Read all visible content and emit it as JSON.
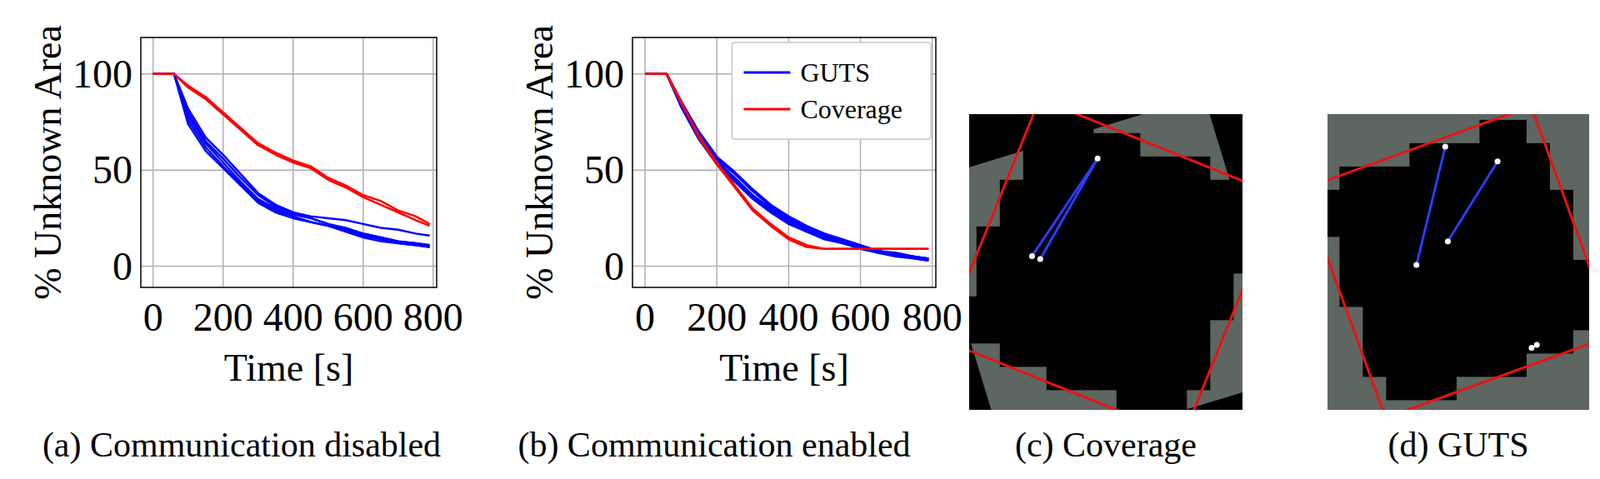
{
  "chart_data": [
    {
      "type": "line",
      "x_label": "Time [s]",
      "y_label": "% Unknown Area",
      "xlim": [
        -35,
        810
      ],
      "ylim": [
        -11,
        119
      ],
      "xticks": [
        0,
        200,
        400,
        600,
        800
      ],
      "yticks": [
        0,
        50,
        100
      ],
      "grid": true,
      "x": [
        0,
        60,
        100,
        150,
        200,
        250,
        300,
        350,
        400,
        450,
        500,
        550,
        600,
        650,
        700,
        750,
        790
      ],
      "series": [
        {
          "name": "GUTS",
          "color": "#0000ff",
          "values": [
            100,
            100,
            80,
            65,
            56,
            46,
            37,
            31,
            28,
            26,
            25,
            24,
            22,
            20,
            19,
            17,
            16
          ]
        },
        {
          "name": "GUTS",
          "color": "#0000ff",
          "values": [
            100,
            100,
            78,
            64,
            54,
            44,
            35,
            30,
            27,
            25,
            22,
            20,
            17,
            15,
            13,
            12,
            11
          ]
        },
        {
          "name": "GUTS",
          "color": "#0000ff",
          "values": [
            100,
            100,
            76,
            62,
            52,
            43,
            34,
            29,
            26,
            23,
            21,
            19,
            17,
            15,
            13,
            12,
            11
          ]
        },
        {
          "name": "GUTS",
          "color": "#0000ff",
          "values": [
            100,
            100,
            74,
            60,
            51,
            42,
            33,
            28,
            25,
            23,
            21,
            18,
            15,
            13,
            12,
            11,
            10
          ]
        },
        {
          "name": "GUTS",
          "color": "#0000ff",
          "values": [
            100,
            100,
            82,
            67,
            58,
            48,
            38,
            32,
            28,
            25,
            22,
            19,
            16,
            14,
            12,
            11,
            10
          ]
        },
        {
          "name": "Coverage",
          "color": "#ff0000",
          "values": [
            100,
            100,
            94,
            88,
            80,
            72,
            64,
            59,
            55,
            52,
            46,
            42,
            37,
            34,
            29,
            26,
            22
          ]
        },
        {
          "name": "Coverage",
          "color": "#ff0000",
          "values": [
            100,
            100,
            93,
            87,
            79,
            71,
            63,
            58,
            54,
            51,
            45,
            41,
            36,
            32,
            28,
            24,
            21
          ]
        }
      ]
    },
    {
      "type": "line",
      "x_label": "Time [s]",
      "y_label": "% Unknown Area",
      "xlim": [
        -35,
        810
      ],
      "ylim": [
        -11,
        119
      ],
      "xticks": [
        0,
        200,
        400,
        600,
        800
      ],
      "yticks": [
        0,
        50,
        100
      ],
      "grid": true,
      "legend": "upper right",
      "x": [
        0,
        60,
        100,
        150,
        200,
        250,
        300,
        350,
        400,
        450,
        500,
        550,
        600,
        650,
        700,
        750,
        790
      ],
      "series": [
        {
          "name": "GUTS",
          "color": "#0000ff",
          "values": [
            100,
            100,
            86,
            70,
            57,
            49,
            40,
            32,
            26,
            21,
            17,
            14,
            11,
            8,
            6,
            5,
            4
          ]
        },
        {
          "name": "GUTS",
          "color": "#0000ff",
          "values": [
            100,
            100,
            84,
            68,
            55,
            46,
            37,
            30,
            24,
            19,
            16,
            13,
            10,
            8,
            6,
            5,
            4
          ]
        },
        {
          "name": "GUTS",
          "color": "#0000ff",
          "values": [
            100,
            100,
            85,
            67,
            54,
            45,
            36,
            29,
            23,
            18,
            15,
            12,
            10,
            7,
            5,
            4,
            3
          ]
        },
        {
          "name": "GUTS",
          "color": "#0000ff",
          "values": [
            100,
            100,
            86,
            69,
            56,
            48,
            39,
            31,
            25,
            20,
            16,
            13,
            10,
            8,
            7,
            5,
            4
          ]
        },
        {
          "name": "GUTS",
          "color": "#0000ff",
          "values": [
            100,
            100,
            83,
            66,
            53,
            44,
            35,
            28,
            22,
            18,
            14,
            12,
            9,
            7,
            6,
            4,
            3
          ]
        },
        {
          "name": "Coverage",
          "color": "#ff0000",
          "values": [
            100,
            100,
            85,
            68,
            54,
            42,
            30,
            22,
            15,
            11,
            9,
            9,
            9,
            9,
            9,
            9,
            9
          ]
        },
        {
          "name": "Coverage",
          "color": "#ff0000",
          "values": [
            100,
            100,
            86,
            67,
            53,
            41,
            29,
            21,
            14,
            10,
            9,
            9,
            9,
            9,
            9,
            9,
            9
          ]
        }
      ]
    }
  ],
  "captions": [
    "(a) Communication disabled",
    "(b) Communication enabled",
    "(c) Coverage",
    "(d) GUTS"
  ]
}
